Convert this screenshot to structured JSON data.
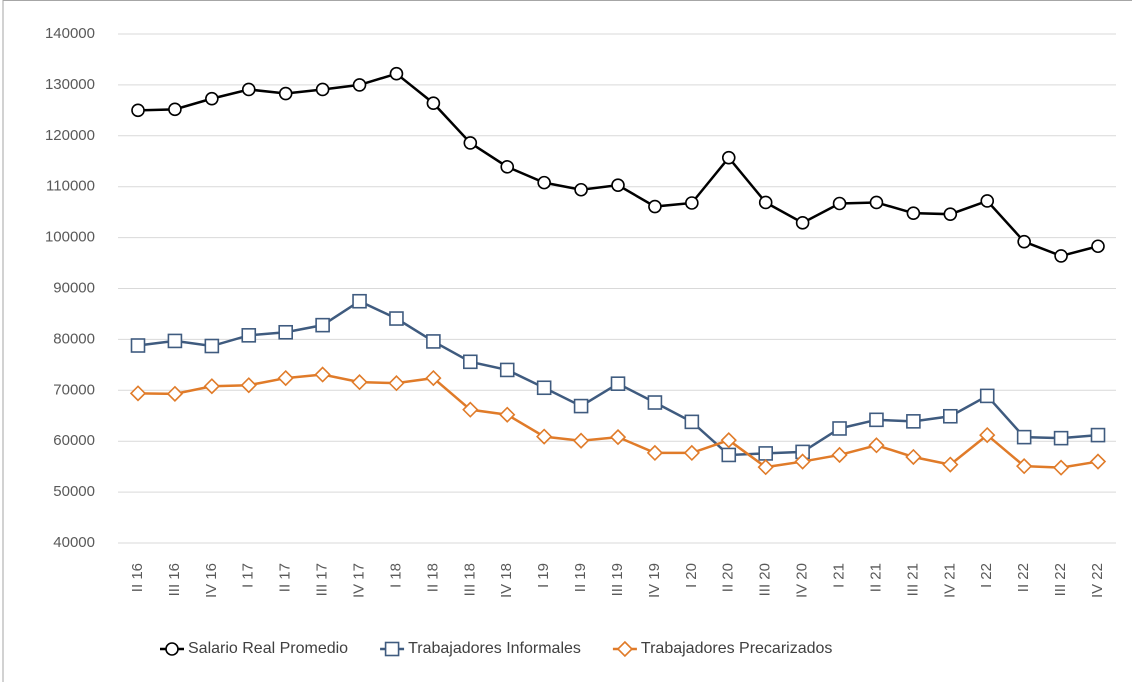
{
  "chart_data": {
    "type": "line",
    "categories": [
      "II 16",
      "III 16",
      "IV 16",
      "I 17",
      "II 17",
      "III 17",
      "IV 17",
      "I 18",
      "II 18",
      "III 18",
      "IV 18",
      "I 19",
      "II 19",
      "III 19",
      "IV 19",
      "I 20",
      "II 20",
      "III 20",
      "IV 20",
      "I 21",
      "II 21",
      "III 21",
      "IV 21",
      "I 22",
      "II 22",
      "III 22",
      "IV 22"
    ],
    "series": [
      {
        "name": "Salario Real Promedio",
        "color": "#000000",
        "marker": "circle",
        "values": [
          125000,
          125200,
          127300,
          129100,
          128300,
          129100,
          130000,
          132200,
          126400,
          118600,
          113900,
          110800,
          109400,
          110300,
          106100,
          106800,
          115700,
          106900,
          102900,
          106700,
          106900,
          104800,
          104600,
          107200,
          99200,
          96400,
          98300
        ]
      },
      {
        "name": "Trabajadores Informales",
        "color": "#3f5b7f",
        "marker": "square",
        "values": [
          78800,
          79700,
          78700,
          80800,
          81400,
          82800,
          87500,
          84100,
          79600,
          75600,
          74000,
          70500,
          66900,
          71300,
          67600,
          63800,
          57300,
          57600,
          57900,
          62500,
          64200,
          63900,
          64900,
          68900,
          60800,
          60600,
          61200
        ]
      },
      {
        "name": "Trabajadores Precarizados",
        "color": "#e07b29",
        "marker": "diamond",
        "values": [
          69400,
          69300,
          70800,
          71000,
          72400,
          73100,
          71600,
          71400,
          72400,
          66200,
          65200,
          60900,
          60100,
          60800,
          57700,
          57700,
          60200,
          54900,
          56000,
          57300,
          59200,
          56900,
          55400,
          61200,
          55100,
          54800,
          56000
        ]
      }
    ],
    "ylim": [
      40000,
      140000
    ],
    "yticks": [
      40000,
      50000,
      60000,
      70000,
      80000,
      90000,
      100000,
      110000,
      120000,
      130000,
      140000
    ],
    "grid": true,
    "legend": "bottom"
  }
}
